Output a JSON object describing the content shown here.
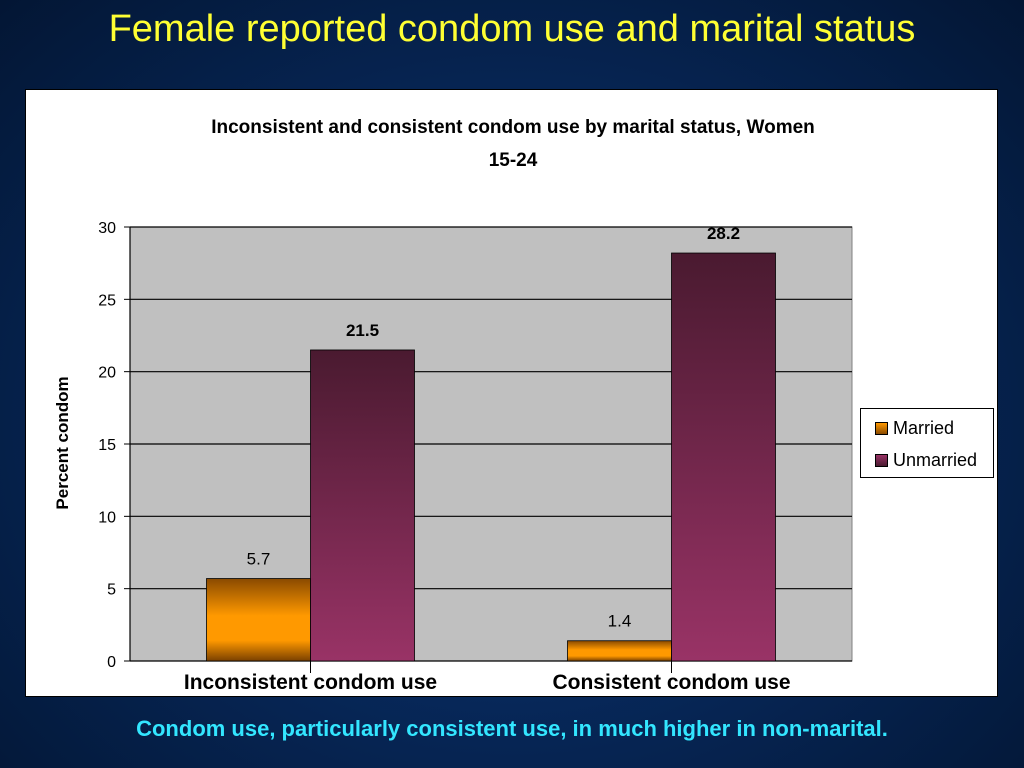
{
  "slide": {
    "title": "Female reported condom use and marital status",
    "footer": "Condom use, particularly consistent use, in much higher in non-marital."
  },
  "chart_data": {
    "type": "bar",
    "title_line1": "Inconsistent and consistent condom use by marital status, Women",
    "title_line2": "15-24",
    "categories": [
      "Inconsistent condom use",
      "Consistent condom use"
    ],
    "series": [
      {
        "name": "Married",
        "values": [
          5.7,
          1.4
        ],
        "color": "#ff9900",
        "label_bold": false
      },
      {
        "name": "Unmarried",
        "values": [
          21.5,
          28.2
        ],
        "color": "#993366",
        "label_bold": true
      }
    ],
    "data_labels": {
      "Married": [
        "5.7",
        "1.4"
      ],
      "Unmarried": [
        "21.5",
        "28.2"
      ]
    },
    "xlabel": "",
    "ylabel": "Percent condom",
    "ylim": [
      0,
      30
    ],
    "yticks": [
      0,
      5,
      10,
      15,
      20,
      25,
      30
    ],
    "grid": true,
    "plot_background": "#c0c0c0",
    "legend_position": "right"
  }
}
